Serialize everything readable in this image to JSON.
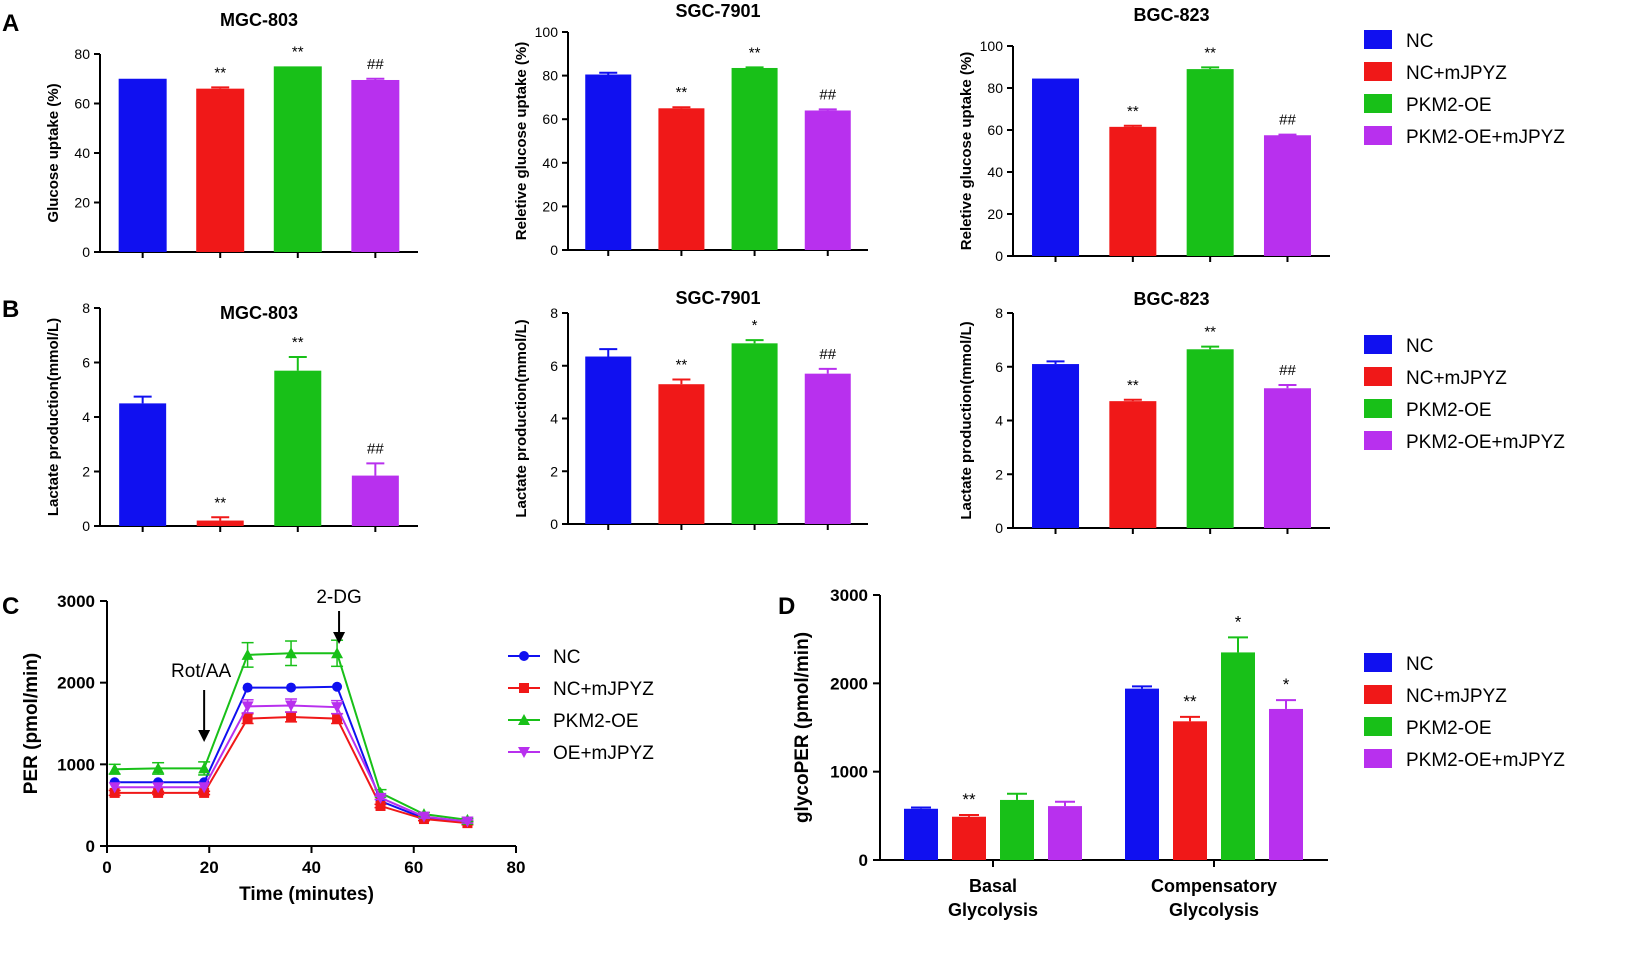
{
  "panel_labels": [
    "A",
    "B",
    "C",
    "D"
  ],
  "colors": {
    "nc": "#1010f0",
    "nc_mjpyz": "#f01818",
    "pkm2_oe": "#18c018",
    "pkm2_oe_mjpyz": "#b830ee",
    "axis": "#000000"
  },
  "legends": {
    "bar_groups": [
      "NC",
      "NC+mJPYZ",
      "PKM2-OE",
      "PKM2-OE+mJPYZ"
    ],
    "line_groups": [
      "NC",
      "NC+mJPYZ",
      "PKM2-OE",
      "OE+mJPYZ"
    ]
  },
  "chart_data": [
    {
      "id": "A1",
      "type": "bar",
      "title": "MGC-803",
      "ylabel": "Glucose uptake (%)",
      "ylim": [
        0,
        80
      ],
      "yticks": [
        0,
        20,
        40,
        60,
        80
      ],
      "categories": [
        "NC",
        "NC+mJPYZ",
        "PKM2-OE",
        "PKM2-OE+mJPYZ"
      ],
      "values": [
        70,
        66,
        75,
        69.5
      ],
      "errors": [
        0,
        0.5,
        0,
        0.5
      ],
      "annotations": [
        "",
        "**",
        "**",
        "##"
      ]
    },
    {
      "id": "A2",
      "type": "bar",
      "title": "SGC-7901",
      "ylabel": "Reletive glucose uptake (%)",
      "ylim": [
        0,
        100
      ],
      "yticks": [
        0,
        20,
        40,
        60,
        80,
        100
      ],
      "categories": [
        "NC",
        "NC+mJPYZ",
        "PKM2-OE",
        "PKM2-OE+mJPYZ"
      ],
      "values": [
        80.5,
        65,
        83.5,
        64
      ],
      "errors": [
        0.8,
        0.5,
        0.3,
        0.5
      ],
      "annotations": [
        "",
        "**",
        "**",
        "##"
      ]
    },
    {
      "id": "A3",
      "type": "bar",
      "title": "BGC-823",
      "ylabel": "Reletive glucose uptake (%)",
      "ylim": [
        0,
        100
      ],
      "yticks": [
        0,
        20,
        40,
        60,
        80,
        100
      ],
      "categories": [
        "NC",
        "NC+mJPYZ",
        "PKM2-OE",
        "PKM2-OE+mJPYZ"
      ],
      "values": [
        84.5,
        61.5,
        89,
        57.5
      ],
      "errors": [
        0,
        0.5,
        0.8,
        0.3
      ],
      "annotations": [
        "",
        "**",
        "**",
        "##"
      ]
    },
    {
      "id": "B1",
      "type": "bar",
      "title": "MGC-803",
      "ylabel": "Lactate production(mmol/L)",
      "ylim": [
        0,
        8
      ],
      "yticks": [
        0,
        2,
        4,
        6,
        8
      ],
      "categories": [
        "NC",
        "NC+mJPYZ",
        "PKM2-OE",
        "PKM2-OE+mJPYZ"
      ],
      "values": [
        4.5,
        0.2,
        5.7,
        1.85
      ],
      "errors": [
        0.25,
        0.12,
        0.5,
        0.45
      ],
      "annotations": [
        "",
        "**",
        "**",
        "##"
      ]
    },
    {
      "id": "B2",
      "type": "bar",
      "title": "SGC-7901",
      "ylabel": "Lactate production(mmol/L)",
      "ylim": [
        0,
        8
      ],
      "yticks": [
        0,
        2,
        4,
        6,
        8
      ],
      "categories": [
        "NC",
        "NC+mJPYZ",
        "PKM2-OE",
        "PKM2-OE+mJPYZ"
      ],
      "values": [
        6.35,
        5.3,
        6.85,
        5.7
      ],
      "errors": [
        0.28,
        0.18,
        0.12,
        0.18
      ],
      "annotations": [
        "",
        "**",
        "*",
        "##"
      ]
    },
    {
      "id": "B3",
      "type": "bar",
      "title": "BGC-823",
      "ylabel": "Lactate production(mmol/L)",
      "ylim": [
        0,
        8
      ],
      "yticks": [
        0,
        2,
        4,
        6,
        8
      ],
      "categories": [
        "NC",
        "NC+mJPYZ",
        "PKM2-OE",
        "PKM2-OE+mJPYZ"
      ],
      "values": [
        6.1,
        4.72,
        6.65,
        5.2
      ],
      "errors": [
        0.1,
        0.05,
        0.1,
        0.12
      ],
      "annotations": [
        "",
        "**",
        "**",
        "##"
      ]
    },
    {
      "id": "C",
      "type": "line",
      "xlabel": "Time (minutes)",
      "ylabel": "PER (pmol/min)",
      "xlim": [
        0,
        80
      ],
      "xticks": [
        0,
        20,
        40,
        60,
        80
      ],
      "ylim": [
        0,
        3000
      ],
      "yticks": [
        0,
        1000,
        2000,
        3000
      ],
      "x": [
        1.5,
        10,
        19,
        27.5,
        36,
        45,
        53.5,
        62,
        70.5
      ],
      "series": [
        {
          "name": "NC",
          "marker": "circle",
          "values": [
            780,
            780,
            780,
            1940,
            1940,
            1950,
            550,
            340,
            290
          ],
          "errors": [
            0,
            0,
            0,
            0,
            0,
            0,
            0,
            0,
            0
          ]
        },
        {
          "name": "NC+mJPYZ",
          "marker": "square",
          "values": [
            650,
            650,
            650,
            1560,
            1580,
            1560,
            490,
            330,
            280
          ],
          "errors": [
            30,
            20,
            20,
            60,
            60,
            60,
            20,
            20,
            20
          ]
        },
        {
          "name": "PKM2-OE",
          "marker": "triangle-up",
          "values": [
            940,
            950,
            950,
            2340,
            2360,
            2360,
            650,
            390,
            320
          ],
          "errors": [
            60,
            70,
            80,
            150,
            150,
            160,
            40,
            20,
            20
          ]
        },
        {
          "name": "OE+mJPYZ",
          "marker": "triangle-down",
          "values": [
            720,
            720,
            720,
            1710,
            1720,
            1700,
            590,
            360,
            300
          ],
          "errors": [
            0,
            0,
            0,
            80,
            80,
            80,
            20,
            20,
            20
          ]
        }
      ],
      "annotations": [
        {
          "text": "Rot/AA",
          "x": 19
        },
        {
          "text": "2-DG",
          "x": 45
        }
      ]
    },
    {
      "id": "D",
      "type": "bar",
      "ylabel": "glycoPER (pmol/min)",
      "ylim": [
        0,
        3000
      ],
      "yticks": [
        0,
        1000,
        2000,
        3000
      ],
      "categories": [
        "Basal Glycolysis",
        "Compensatory Glycolysis"
      ],
      "category_lines": [
        [
          "Basal",
          "Glycolysis"
        ],
        [
          "Compensatory",
          "Glycolysis"
        ]
      ],
      "series": [
        {
          "name": "NC",
          "values": [
            580,
            1940
          ],
          "errors": [
            15,
            25
          ],
          "annotations": [
            "",
            ""
          ]
        },
        {
          "name": "NC+mJPYZ",
          "values": [
            490,
            1570
          ],
          "errors": [
            20,
            50
          ],
          "annotations": [
            "**",
            "**"
          ]
        },
        {
          "name": "PKM2-OE",
          "values": [
            680,
            2350
          ],
          "errors": [
            70,
            170
          ],
          "annotations": [
            "",
            "*"
          ]
        },
        {
          "name": "PKM2-OE+mJPYZ",
          "values": [
            610,
            1710
          ],
          "errors": [
            50,
            100
          ],
          "annotations": [
            "",
            "*"
          ]
        }
      ]
    }
  ]
}
